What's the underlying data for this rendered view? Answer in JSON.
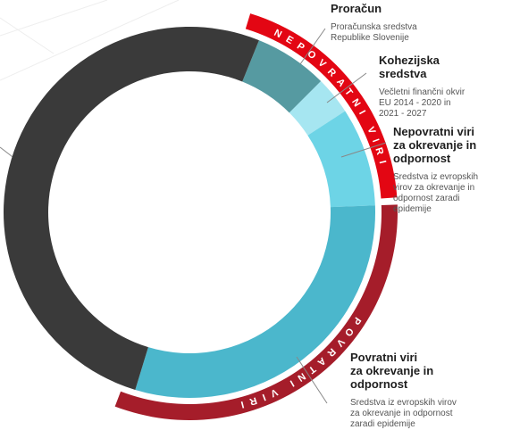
{
  "chart_data": {
    "type": "donut",
    "categories": [
      [
        "Proračun"
      ],
      [
        "Kohezijska",
        "sredstva"
      ],
      [
        "Nepovratni viri",
        "za okrevanje in",
        "odpornost"
      ],
      [
        "Povratni viri",
        "za okrevanje in",
        "odpornost"
      ],
      null
    ],
    "descriptions": [
      [
        "Proračunska sredstva",
        "Republike Slovenije"
      ],
      [
        "Večletni finančni okvir",
        "EU 2014 - 2020 in",
        "2021 - 2027"
      ],
      [
        "Sredstva iz evropskih",
        "virov za okrevanje in",
        "odpornost zaradi",
        "epidemije"
      ],
      [
        "Sredstva iz evropskih virov",
        "za okrevanje in odpornost",
        "zaradi epidemije"
      ],
      null
    ],
    "values": [
      6.4,
      3.3,
      8.6,
      30.3,
      51.4
    ],
    "colors": [
      "#569aa1",
      "#a6e6f1",
      "#6dd4e6",
      "#4bb7cc",
      "#3a3a3a"
    ],
    "groups": [
      {
        "label": "NEPOVRATNI VIRI",
        "color": "#e30613"
      },
      {
        "label": "POVRATNI VIRI",
        "color": "#a51d2a"
      }
    ]
  }
}
